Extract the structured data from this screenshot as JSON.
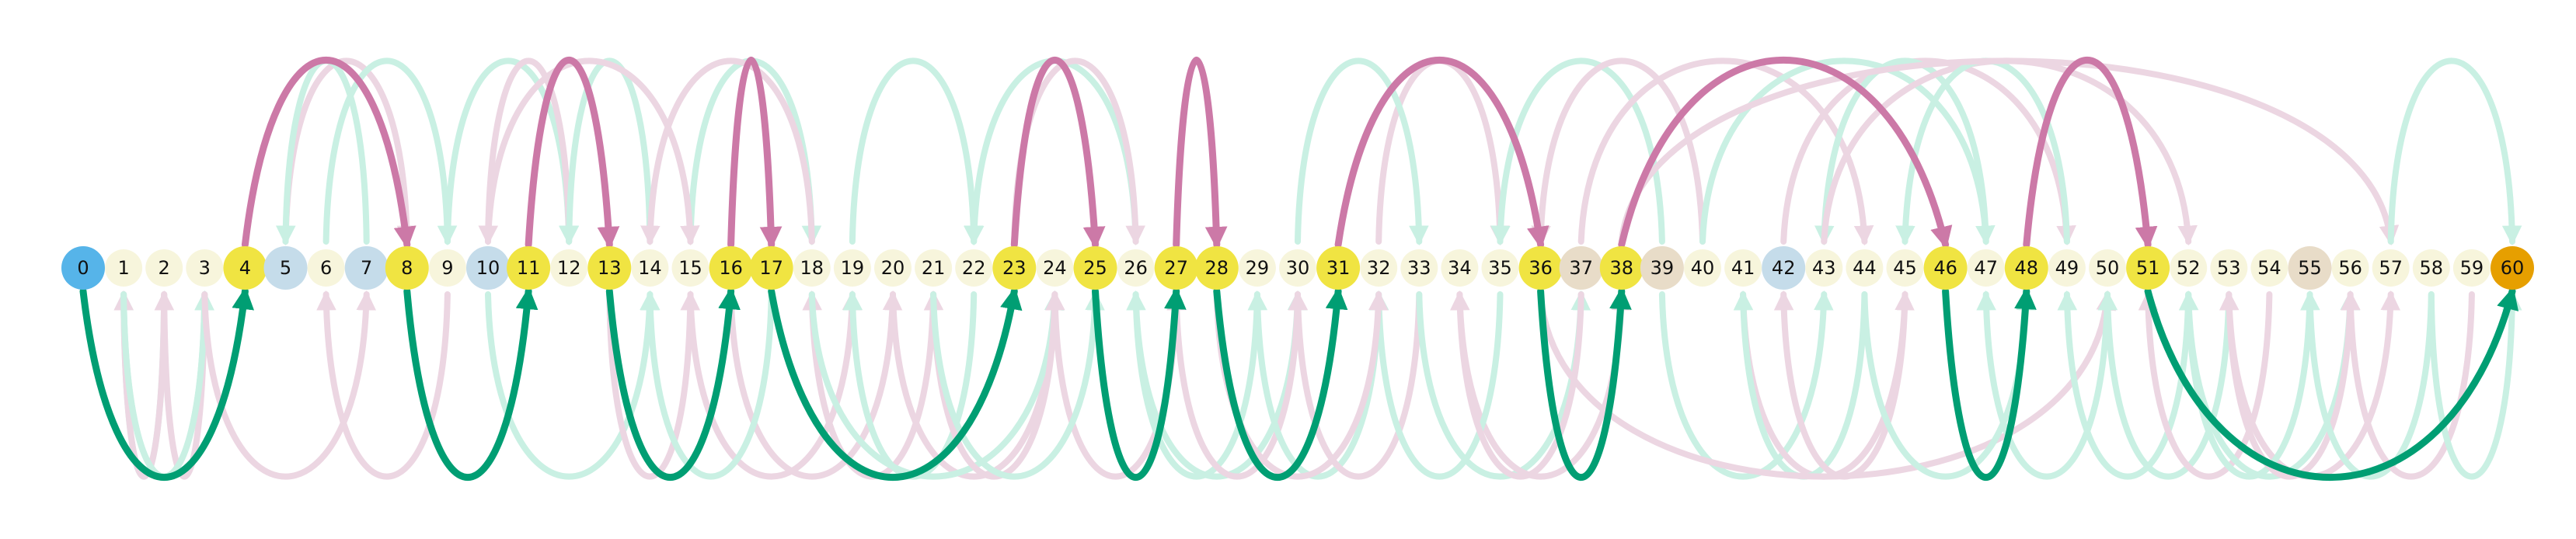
{
  "colors": {
    "start": "#56b4e9",
    "end": "#e69f00",
    "path_node": "#f0e442",
    "plain_node": "#f7f5dc",
    "blue_node": "#c5dcea",
    "tan_node": "#e8dcc8",
    "green": "#009e73",
    "green_faint": "#c9f0e3",
    "pink": "#cc79a7",
    "pink_faint": "#ecd6e2"
  },
  "nodes": [
    {
      "label": "0",
      "kind": "start"
    },
    {
      "label": "1",
      "kind": "plain"
    },
    {
      "label": "2",
      "kind": "plain"
    },
    {
      "label": "3",
      "kind": "plain"
    },
    {
      "label": "4",
      "kind": "path"
    },
    {
      "label": "5",
      "kind": "blue"
    },
    {
      "label": "6",
      "kind": "plain"
    },
    {
      "label": "7",
      "kind": "blue"
    },
    {
      "label": "8",
      "kind": "path"
    },
    {
      "label": "9",
      "kind": "plain"
    },
    {
      "label": "10",
      "kind": "blue"
    },
    {
      "label": "11",
      "kind": "path"
    },
    {
      "label": "12",
      "kind": "plain"
    },
    {
      "label": "13",
      "kind": "path"
    },
    {
      "label": "14",
      "kind": "plain"
    },
    {
      "label": "15",
      "kind": "plain"
    },
    {
      "label": "16",
      "kind": "path"
    },
    {
      "label": "17",
      "kind": "path"
    },
    {
      "label": "18",
      "kind": "plain"
    },
    {
      "label": "19",
      "kind": "plain"
    },
    {
      "label": "20",
      "kind": "plain"
    },
    {
      "label": "21",
      "kind": "plain"
    },
    {
      "label": "22",
      "kind": "plain"
    },
    {
      "label": "23",
      "kind": "path"
    },
    {
      "label": "24",
      "kind": "plain"
    },
    {
      "label": "25",
      "kind": "path"
    },
    {
      "label": "26",
      "kind": "plain"
    },
    {
      "label": "27",
      "kind": "path"
    },
    {
      "label": "28",
      "kind": "path"
    },
    {
      "label": "29",
      "kind": "plain"
    },
    {
      "label": "30",
      "kind": "plain"
    },
    {
      "label": "31",
      "kind": "path"
    },
    {
      "label": "32",
      "kind": "plain"
    },
    {
      "label": "33",
      "kind": "plain"
    },
    {
      "label": "34",
      "kind": "plain"
    },
    {
      "label": "35",
      "kind": "plain"
    },
    {
      "label": "36",
      "kind": "path"
    },
    {
      "label": "37",
      "kind": "tan"
    },
    {
      "label": "38",
      "kind": "path"
    },
    {
      "label": "39",
      "kind": "tan"
    },
    {
      "label": "40",
      "kind": "plain"
    },
    {
      "label": "41",
      "kind": "plain"
    },
    {
      "label": "42",
      "kind": "blue"
    },
    {
      "label": "43",
      "kind": "plain"
    },
    {
      "label": "44",
      "kind": "plain"
    },
    {
      "label": "45",
      "kind": "plain"
    },
    {
      "label": "46",
      "kind": "path"
    },
    {
      "label": "47",
      "kind": "plain"
    },
    {
      "label": "48",
      "kind": "path"
    },
    {
      "label": "49",
      "kind": "plain"
    },
    {
      "label": "50",
      "kind": "plain"
    },
    {
      "label": "51",
      "kind": "path"
    },
    {
      "label": "52",
      "kind": "plain"
    },
    {
      "label": "53",
      "kind": "plain"
    },
    {
      "label": "54",
      "kind": "plain"
    },
    {
      "label": "55",
      "kind": "tan"
    },
    {
      "label": "56",
      "kind": "plain"
    },
    {
      "label": "57",
      "kind": "plain"
    },
    {
      "label": "58",
      "kind": "plain"
    },
    {
      "label": "59",
      "kind": "plain"
    },
    {
      "label": "60",
      "kind": "end"
    }
  ],
  "path_edges": [
    {
      "from": 0,
      "to": 4,
      "color": "green"
    },
    {
      "from": 4,
      "to": 8,
      "color": "pink"
    },
    {
      "from": 8,
      "to": 11,
      "color": "green"
    },
    {
      "from": 11,
      "to": 13,
      "color": "pink"
    },
    {
      "from": 13,
      "to": 16,
      "color": "green"
    },
    {
      "from": 16,
      "to": 17,
      "color": "pink"
    },
    {
      "from": 17,
      "to": 23,
      "color": "green"
    },
    {
      "from": 23,
      "to": 25,
      "color": "pink"
    },
    {
      "from": 25,
      "to": 27,
      "color": "green"
    },
    {
      "from": 27,
      "to": 28,
      "color": "pink"
    },
    {
      "from": 28,
      "to": 31,
      "color": "green"
    },
    {
      "from": 31,
      "to": 36,
      "color": "pink"
    },
    {
      "from": 36,
      "to": 38,
      "color": "green"
    },
    {
      "from": 38,
      "to": 46,
      "color": "pink"
    },
    {
      "from": 46,
      "to": 48,
      "color": "green"
    },
    {
      "from": 48,
      "to": 51,
      "color": "pink"
    },
    {
      "from": 51,
      "to": 60,
      "color": "green"
    }
  ],
  "faint_edges": [
    {
      "from": 1,
      "to": 3,
      "color": "green_faint"
    },
    {
      "from": 2,
      "to": 1,
      "color": "green_faint"
    },
    {
      "from": 2,
      "to": 1,
      "color": "pink_faint"
    },
    {
      "from": 3,
      "to": 2,
      "color": "pink_faint"
    },
    {
      "from": 1,
      "to": 3,
      "color": "green_faint"
    },
    {
      "from": 5,
      "to": 8,
      "color": "pink_faint"
    },
    {
      "from": 6,
      "to": 9,
      "color": "green_faint"
    },
    {
      "from": 7,
      "to": 5,
      "color": "green_faint"
    },
    {
      "from": 3,
      "to": 7,
      "color": "pink_faint"
    },
    {
      "from": 9,
      "to": 6,
      "color": "pink_faint"
    },
    {
      "from": 9,
      "to": 12,
      "color": "green_faint"
    },
    {
      "from": 10,
      "to": 14,
      "color": "green_faint"
    },
    {
      "from": 12,
      "to": 10,
      "color": "pink_faint"
    },
    {
      "from": 14,
      "to": 12,
      "color": "green_faint"
    },
    {
      "from": 13,
      "to": 15,
      "color": "pink_faint"
    },
    {
      "from": 15,
      "to": 19,
      "color": "pink_faint"
    },
    {
      "from": 15,
      "to": 18,
      "color": "green_faint"
    },
    {
      "from": 18,
      "to": 14,
      "color": "pink_faint"
    },
    {
      "from": 16,
      "to": 20,
      "color": "pink_faint"
    },
    {
      "from": 17,
      "to": 14,
      "color": "green_faint"
    },
    {
      "from": 19,
      "to": 22,
      "color": "green_faint"
    },
    {
      "from": 20,
      "to": 24,
      "color": "pink_faint"
    },
    {
      "from": 21,
      "to": 18,
      "color": "pink_faint"
    },
    {
      "from": 18,
      "to": 24,
      "color": "green_faint"
    },
    {
      "from": 22,
      "to": 19,
      "color": "green_faint"
    },
    {
      "from": 24,
      "to": 21,
      "color": "pink_faint"
    },
    {
      "from": 26,
      "to": 22,
      "color": "green_faint"
    },
    {
      "from": 23,
      "to": 26,
      "color": "pink_faint"
    },
    {
      "from": 27,
      "to": 24,
      "color": "pink_faint"
    },
    {
      "from": 29,
      "to": 26,
      "color": "green_faint"
    },
    {
      "from": 26,
      "to": 30,
      "color": "green_faint"
    },
    {
      "from": 30,
      "to": 27,
      "color": "pink_faint"
    },
    {
      "from": 32,
      "to": 29,
      "color": "green_faint"
    },
    {
      "from": 33,
      "to": 30,
      "color": "pink_faint"
    },
    {
      "from": 32,
      "to": 35,
      "color": "pink_faint"
    },
    {
      "from": 33,
      "to": 37,
      "color": "green_faint"
    },
    {
      "from": 34,
      "to": 38,
      "color": "pink_faint"
    },
    {
      "from": 35,
      "to": 32,
      "color": "green_faint"
    },
    {
      "from": 37,
      "to": 34,
      "color": "pink_faint"
    },
    {
      "from": 39,
      "to": 35,
      "color": "green_faint"
    },
    {
      "from": 40,
      "to": 36,
      "color": "pink_faint"
    },
    {
      "from": 39,
      "to": 43,
      "color": "green_faint"
    },
    {
      "from": 37,
      "to": 44,
      "color": "pink_faint"
    },
    {
      "from": 41,
      "to": 45,
      "color": "pink_faint"
    },
    {
      "from": 40,
      "to": 47,
      "color": "green_faint"
    },
    {
      "from": 42,
      "to": 49,
      "color": "pink_faint"
    },
    {
      "from": 44,
      "to": 41,
      "color": "green_faint"
    },
    {
      "from": 45,
      "to": 42,
      "color": "pink_faint"
    },
    {
      "from": 47,
      "to": 43,
      "color": "green_faint"
    },
    {
      "from": 43,
      "to": 52,
      "color": "pink_faint"
    },
    {
      "from": 36,
      "to": 50,
      "color": "pink_faint"
    },
    {
      "from": 49,
      "to": 45,
      "color": "green_faint"
    },
    {
      "from": 50,
      "to": 47,
      "color": "green_faint"
    },
    {
      "from": 52,
      "to": 49,
      "color": "green_faint"
    },
    {
      "from": 53,
      "to": 50,
      "color": "green_faint"
    },
    {
      "from": 54,
      "to": 51,
      "color": "pink_faint"
    },
    {
      "from": 52,
      "to": 56,
      "color": "green_faint"
    },
    {
      "from": 53,
      "to": 57,
      "color": "pink_faint"
    },
    {
      "from": 55,
      "to": 52,
      "color": "green_faint"
    },
    {
      "from": 56,
      "to": 53,
      "color": "pink_faint"
    },
    {
      "from": 38,
      "to": 57,
      "color": "pink_faint"
    },
    {
      "from": 58,
      "to": 55,
      "color": "green_faint"
    },
    {
      "from": 59,
      "to": 56,
      "color": "pink_faint"
    },
    {
      "from": 58,
      "to": 60,
      "color": "green_faint"
    },
    {
      "from": 57,
      "to": 60,
      "color": "green_faint"
    },
    {
      "from": 30,
      "to": 33,
      "color": "green_faint"
    },
    {
      "from": 10,
      "to": 15,
      "color": "pink_faint"
    },
    {
      "from": 21,
      "to": 25,
      "color": "green_faint"
    },
    {
      "from": 28,
      "to": 32,
      "color": "pink_faint"
    },
    {
      "from": 44,
      "to": 48,
      "color": "green_faint"
    }
  ]
}
